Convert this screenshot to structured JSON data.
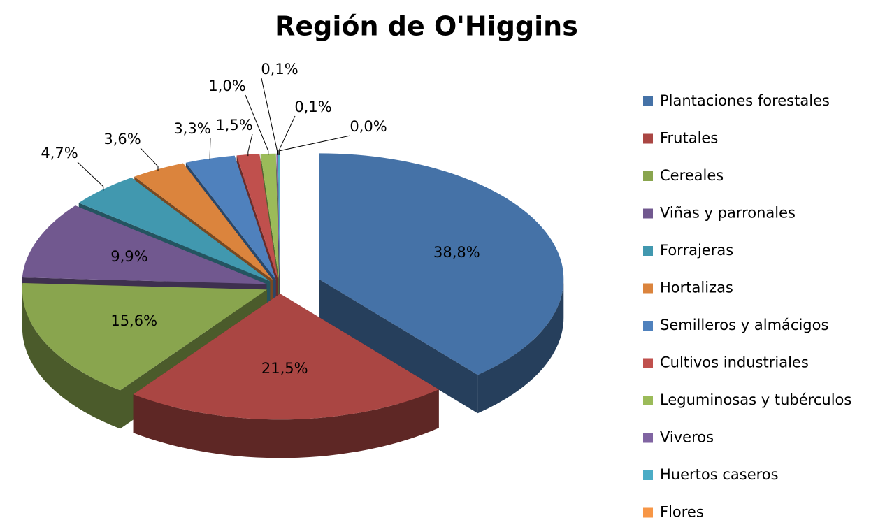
{
  "chart_data": {
    "type": "pie",
    "title": "Región de O'Higgins",
    "categories": [
      "Plantaciones forestales",
      "Frutales",
      "Cereales",
      "Viñas y parronales",
      "Forrajeras",
      "Hortalizas",
      "Semilleros y almácigos",
      "Cultivos industriales",
      "Leguminosas y tubérculos",
      "Viveros",
      "Huertos caseros",
      "Flores"
    ],
    "values": [
      38.8,
      21.5,
      15.6,
      9.9,
      4.7,
      3.6,
      3.3,
      1.5,
      1.0,
      0.1,
      0.1,
      0.0
    ],
    "value_labels": [
      "38,8%",
      "21,5%",
      "15,6%",
      "9,9%",
      "4,7%",
      "3,6%",
      "3,3%",
      "1,5%",
      "1,0%",
      "0,1%",
      "0,1%",
      "0,0%"
    ],
    "colors": [
      "#4572A7",
      "#AA4643",
      "#89A54E",
      "#71588F",
      "#4198AF",
      "#DB843D",
      "#4F81BD",
      "#C0504D",
      "#9BBB59",
      "#8064A2",
      "#4BACC6",
      "#F79646"
    ]
  }
}
